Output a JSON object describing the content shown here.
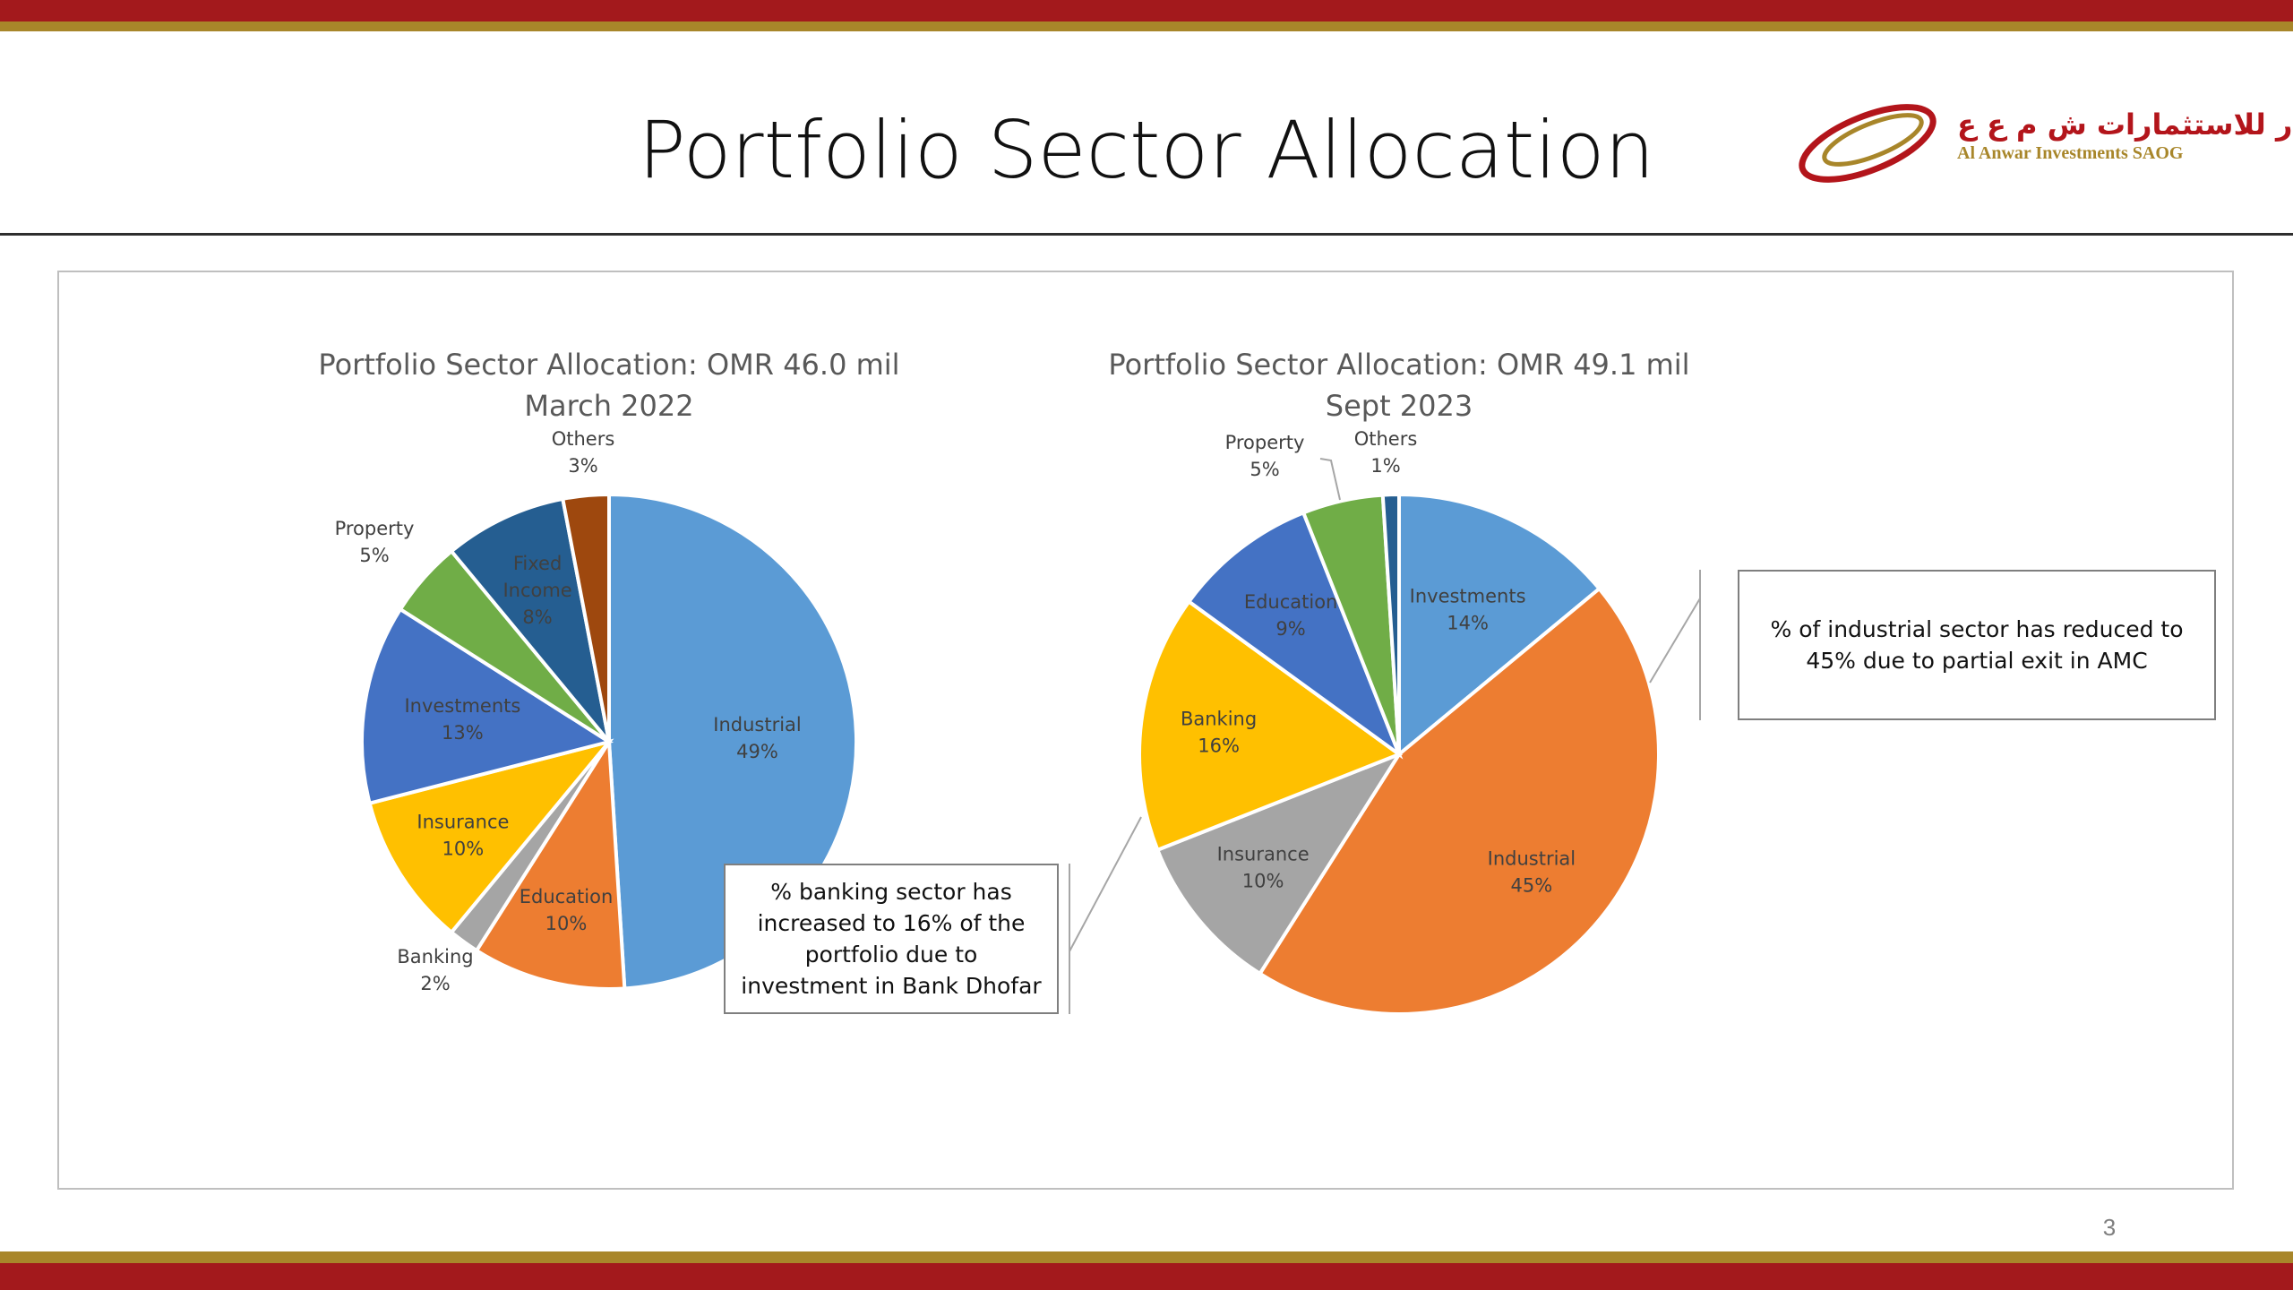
{
  "slide": {
    "title": "Portfolio Sector Allocation",
    "page_number": "3"
  },
  "logo": {
    "arabic_name": "الأنوار للاستثمارات ش م ع ع",
    "english_name": "Al Anwar Investments SAOG"
  },
  "colors": {
    "band_red": "#a3191c",
    "band_gold": "#a8862a"
  },
  "chart_data": [
    {
      "type": "pie",
      "title": "Portfolio Sector Allocation: OMR 46.0 mil",
      "subtitle": "March 2022",
      "slices": [
        {
          "label": "Industrial",
          "value": 49,
          "display": "49%",
          "color": "#5b9bd5"
        },
        {
          "label": "Education",
          "value": 10,
          "display": "10%",
          "color": "#ed7d31"
        },
        {
          "label": "Banking",
          "value": 2,
          "display": "2%",
          "color": "#a5a5a5"
        },
        {
          "label": "Insurance",
          "value": 10,
          "display": "10%",
          "color": "#ffc000"
        },
        {
          "label": "Investments",
          "value": 13,
          "display": "13%",
          "color": "#4472c4"
        },
        {
          "label": "Property",
          "value": 5,
          "display": "5%",
          "color": "#70ad47"
        },
        {
          "label": "Fixed Income",
          "value": 8,
          "display": "8%",
          "color": "#255e91"
        },
        {
          "label": "Others",
          "value": 3,
          "display": "3%",
          "color": "#9e480e"
        }
      ]
    },
    {
      "type": "pie",
      "title": "Portfolio Sector Allocation: OMR 49.1 mil",
      "subtitle": "Sept 2023",
      "slices": [
        {
          "label": "Investments",
          "value": 14,
          "display": "14%",
          "color": "#5b9bd5"
        },
        {
          "label": "Industrial",
          "value": 45,
          "display": "45%",
          "color": "#ed7d31"
        },
        {
          "label": "Insurance",
          "value": 10,
          "display": "10%",
          "color": "#a5a5a5"
        },
        {
          "label": "Banking",
          "value": 16,
          "display": "16%",
          "color": "#ffc000"
        },
        {
          "label": "Education",
          "value": 9,
          "display": "9%",
          "color": "#4472c4"
        },
        {
          "label": "Property",
          "value": 5,
          "display": "5%",
          "color": "#70ad47"
        },
        {
          "label": "Others",
          "value": 1,
          "display": "1%",
          "color": "#255e91"
        }
      ]
    }
  ],
  "callouts": {
    "left": "% banking sector has increased to 16% of the portfolio due to investment in Bank Dhofar",
    "right": "% of industrial sector has reduced to 45% due to partial exit in AMC"
  }
}
